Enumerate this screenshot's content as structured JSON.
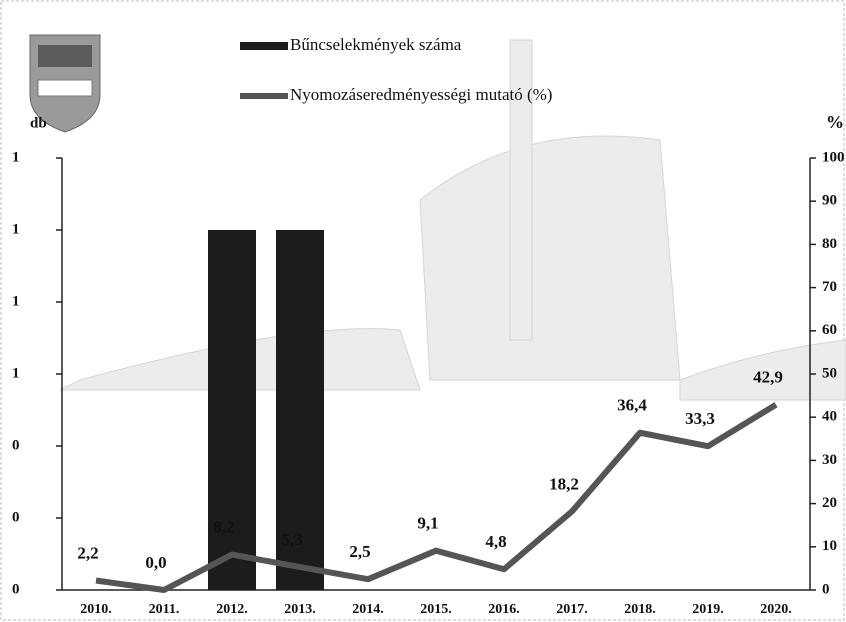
{
  "chart_data": {
    "type": "bar-line",
    "ylabel": "db",
    "y2label": "%",
    "categories": [
      "2010.",
      "2011.",
      "2012.",
      "2013.",
      "2014.",
      "2015.",
      "2016.",
      "2017.",
      "2018.",
      "2019.",
      "2020."
    ],
    "series": [
      {
        "name": "Bűncselekmények száma",
        "type": "bar",
        "color": "#1c1c1c",
        "values": [
          0,
          0,
          1,
          1,
          0,
          0,
          0,
          0,
          0,
          0,
          0
        ]
      },
      {
        "name": "Nyomozáseredményességi mutató (%)",
        "type": "line",
        "axis": "y2",
        "color": "#555555",
        "values": [
          2.2,
          0.0,
          8.2,
          5.3,
          2.5,
          9.1,
          4.8,
          18.2,
          36.4,
          33.3,
          42.9
        ],
        "value_labels": [
          "2,2",
          "0,0",
          "8,2",
          "5,3",
          "2,5",
          "9,1",
          "4,8",
          "18,2",
          "36,4",
          "33,3",
          "42,9"
        ]
      }
    ],
    "ylim": [
      0,
      1.2
    ],
    "yticks": [
      0,
      {
        "value": 0.2,
        "label": "0"
      },
      {
        "value": 0.4,
        "label": "0"
      },
      {
        "value": 0.6,
        "label": "1"
      },
      {
        "value": 0.8,
        "label": "1"
      },
      1,
      {
        "value": 1.2,
        "label": "1"
      }
    ],
    "y2lim": [
      0,
      100
    ],
    "y2ticks": [
      0,
      10,
      20,
      30,
      40,
      50,
      60,
      70,
      80,
      90,
      100
    ]
  }
}
